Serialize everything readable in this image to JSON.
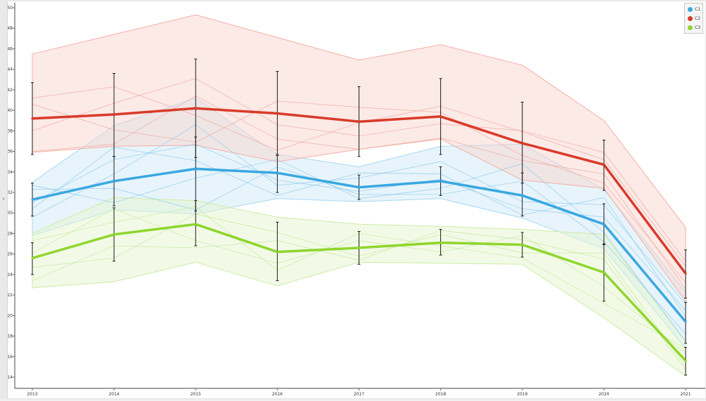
{
  "chart_data": {
    "type": "line",
    "x": [
      "2013",
      "2014",
      "2015",
      "2016",
      "2017",
      "2018",
      "2019",
      "2020",
      "2021"
    ],
    "ylim": [
      14,
      50
    ],
    "yticks": [
      "14",
      "16",
      "18",
      "20",
      "22",
      "24",
      "26",
      "28",
      "30",
      "32",
      "34",
      "36",
      "38",
      "40",
      "42",
      "44",
      "46",
      "48",
      "50"
    ],
    "grid": false,
    "legend_position": "top-right",
    "series": [
      {
        "name": "C1",
        "color": "#3aa8e0",
        "values": [
          31.3,
          33.1,
          34.3,
          33.9,
          32.5,
          33.1,
          31.7,
          28.9,
          19.4
        ],
        "error_low": [
          29.7,
          30.7,
          30.2,
          32.0,
          31.3,
          31.7,
          29.7,
          26.9,
          17.3
        ],
        "error_high": [
          32.9,
          35.5,
          37.4,
          35.6,
          33.7,
          34.5,
          33.9,
          30.9,
          21.3
        ],
        "band_low": [
          27.8,
          30.3,
          29.9,
          31.4,
          31.1,
          31.4,
          29.5,
          26.5,
          16.8
        ],
        "band_high": [
          33.0,
          38.5,
          41.2,
          35.7,
          34.5,
          36.5,
          36.7,
          32.3,
          22.3
        ],
        "members": [
          [
            31.0,
            35.2,
            36.7,
            33.2,
            32.1,
            33.3,
            30.4,
            29.6,
            20.5
          ],
          [
            32.3,
            32.4,
            30.3,
            34.5,
            31.8,
            31.8,
            33.1,
            27.2,
            18.2
          ],
          [
            29.6,
            33.8,
            38.6,
            32.7,
            33.4,
            35.0,
            31.1,
            30.8,
            21.1
          ],
          [
            32.7,
            31.0,
            33.4,
            35.2,
            31.4,
            32.4,
            34.8,
            28.1,
            17.5
          ],
          [
            30.4,
            36.4,
            35.1,
            31.7,
            33.9,
            33.8,
            29.8,
            31.5,
            19.9
          ]
        ]
      },
      {
        "name": "C2",
        "color": "#d93b2b",
        "values": [
          39.2,
          39.6,
          40.2,
          39.7,
          38.9,
          39.4,
          36.8,
          34.7,
          24.1
        ],
        "error_low": [
          35.7,
          35.5,
          35.4,
          35.7,
          35.5,
          35.7,
          32.9,
          32.2,
          21.7
        ],
        "error_high": [
          42.7,
          43.6,
          45.0,
          43.8,
          42.3,
          43.1,
          40.8,
          37.1,
          26.4
        ],
        "band_low": [
          35.9,
          36.5,
          36.6,
          35.0,
          36.2,
          37.2,
          33.2,
          32.4,
          21.4
        ],
        "band_high": [
          45.5,
          47.4,
          49.3,
          47.1,
          44.9,
          46.4,
          44.4,
          39.0,
          28.6
        ],
        "members": [
          [
            40.6,
            38.1,
            36.9,
            40.9,
            40.3,
            39.8,
            35.6,
            32.9,
            23.2
          ],
          [
            38.0,
            40.7,
            43.1,
            38.6,
            37.5,
            38.7,
            38.0,
            35.9,
            25.3
          ],
          [
            36.0,
            36.7,
            41.4,
            37.2,
            36.2,
            37.3,
            35.1,
            33.8,
            22.6
          ],
          [
            41.2,
            42.3,
            39.5,
            36.1,
            38.8,
            40.4,
            37.9,
            35.2,
            24.8
          ]
        ]
      },
      {
        "name": "C3",
        "color": "#8fd62d",
        "values": [
          25.6,
          27.9,
          28.9,
          26.2,
          26.6,
          27.1,
          26.9,
          24.2,
          15.6
        ],
        "error_low": [
          24.0,
          25.3,
          26.8,
          23.4,
          25.0,
          25.9,
          25.7,
          21.4,
          14.2
        ],
        "error_high": [
          27.1,
          30.5,
          31.2,
          29.1,
          28.2,
          28.4,
          28.1,
          27.0,
          16.9
        ],
        "band_low": [
          22.7,
          23.3,
          25.2,
          22.9,
          25.2,
          25.1,
          25.0,
          19.8,
          14.1
        ],
        "band_high": [
          28.0,
          31.5,
          31.2,
          29.6,
          28.9,
          28.7,
          28.4,
          27.9,
          17.5
        ],
        "members": [
          [
            26.1,
            30.4,
            27.3,
            25.1,
            27.3,
            26.2,
            27.8,
            22.8,
            16.3
          ],
          [
            24.7,
            25.6,
            29.9,
            28.1,
            25.8,
            27.9,
            26.1,
            26.1,
            15.0
          ],
          [
            27.3,
            29.1,
            30.6,
            24.4,
            28.0,
            26.8,
            25.6,
            21.2,
            16.8
          ],
          [
            23.4,
            26.8,
            26.6,
            27.3,
            25.4,
            28.3,
            27.4,
            25.5,
            14.7
          ]
        ]
      }
    ]
  },
  "ui": {
    "side_handle_icon": "chevron-right-icon",
    "side_handle_glyph": "›"
  }
}
